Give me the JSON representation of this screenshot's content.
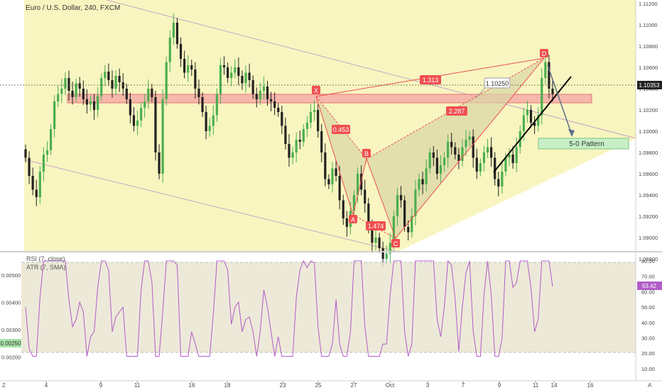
{
  "header": {
    "title": "Euro / U.S. Dollar, 240, FXCM"
  },
  "price_axis": {
    "ticks": [
      "1.11200",
      "1.11000",
      "1.10800",
      "1.10600",
      "1.10400",
      "1.10200",
      "1.10000",
      "1.09800",
      "1.09600",
      "1.09400",
      "1.09200",
      "1.09000",
      "1.08800"
    ],
    "last_price": "1.10353"
  },
  "rsi_axis": {
    "ticks": [
      "80.00",
      "70.00",
      "60.00",
      "50.00",
      "40.00",
      "30.00",
      "20.00",
      "10.00"
    ],
    "last_value": "63.42"
  },
  "atr_axis": {
    "ticks": [
      "0.00500",
      "0.00400",
      "0.00300",
      "0.00200"
    ],
    "highlight": "0.00250"
  },
  "time_axis": {
    "ticks": [
      "4",
      "9",
      "11",
      "16",
      "18",
      "23",
      "25",
      "27",
      "Oct",
      "3",
      "7",
      "9",
      "11",
      "14",
      "16"
    ]
  },
  "indicators": {
    "rsi_label": "RSI (7, close)",
    "atr_label": "ATR (7, SMA)"
  },
  "pattern": {
    "points": [
      "X",
      "A",
      "B",
      "C",
      "D"
    ],
    "ratios": [
      "0.453",
      "1.474",
      "2.287",
      "1.313"
    ],
    "price_callout": "1.10250",
    "target_label": "5-0 Pattern"
  },
  "corner_labels": {
    "left": "Z",
    "right": "A"
  },
  "colors": {
    "up": "#4caf50",
    "down": "#222222",
    "channel_fill": "#f8f5c0",
    "zone_fill": "#f5a3a3",
    "pattern_line": "#ef4f4f",
    "rsi_line": "#b25cc7",
    "target_fill": "#c6efc6",
    "last_price_bg": "#222222"
  },
  "chart_data": {
    "type": "candlestick",
    "title": "Euro / U.S. Dollar, 240, FXCM",
    "price_range": [
      1.0874,
      1.1126
    ],
    "harmonic_pattern": {
      "X": 1.102,
      "A": 1.091,
      "B": 1.096,
      "C": 1.088,
      "D": 1.1065,
      "ratios": {
        "AB": 0.453,
        "BC": 1.474,
        "CD": 2.287,
        "XD": 1.313
      }
    },
    "resistance_zone": [
      1.1016,
      1.1024
    ],
    "rsi": {
      "period": 7,
      "last": 63.42,
      "levels": [
        20,
        80
      ]
    },
    "atr": {
      "period": 7,
      "highlight": 0.0025
    },
    "closes": [
      1.0975,
      1.0958,
      1.0945,
      1.0938,
      1.0962,
      1.0978,
      1.0982,
      1.1002,
      1.1028,
      1.1035,
      1.104,
      1.105,
      1.1038,
      1.1032,
      1.1045,
      1.104,
      1.103,
      1.1025,
      1.1028,
      1.102,
      1.1033,
      1.105,
      1.1056,
      1.1048,
      1.104,
      1.1052,
      1.1046,
      1.104,
      1.103,
      1.1015,
      1.1005,
      1.101,
      1.1022,
      1.1028,
      1.104,
      1.1032,
      1.098,
      1.096,
      1.103,
      1.1065,
      1.1088,
      1.1102,
      1.1082,
      1.1068,
      1.1055,
      1.1062,
      1.1058,
      1.104,
      1.1032,
      1.1018,
      1.1,
      1.1005,
      1.1015,
      1.1035,
      1.1062,
      1.106,
      1.105,
      1.1055,
      1.106,
      1.1052,
      1.1045,
      1.1055,
      1.1048,
      1.1035,
      1.103,
      1.1038,
      1.1042,
      1.103,
      1.1028,
      1.1022,
      1.1018,
      1.1005,
      1.0988,
      1.0975,
      1.098,
      1.0992,
      1.099,
      1.1002,
      1.1008,
      1.1018,
      1.102,
      1.1,
      1.098,
      1.0955,
      1.095,
      1.0965,
      1.0958,
      1.0935,
      1.0918,
      1.091,
      1.0925,
      1.094,
      1.096,
      1.0945,
      1.0932,
      1.091,
      1.0895,
      1.09,
      1.089,
      1.088,
      1.0885,
      1.0895,
      1.092,
      1.094,
      1.0935,
      1.091,
      1.0905,
      1.092,
      1.0945,
      1.0955,
      1.095,
      1.0965,
      1.098,
      1.0975,
      1.096,
      1.0968,
      1.0975,
      1.099,
      1.0985,
      1.0978,
      1.0972,
      1.0985,
      1.0992,
      1.0995,
      1.0975,
      1.0962,
      1.097,
      1.098,
      1.0985,
      1.0975,
      1.0955,
      1.0948,
      1.0962,
      1.0975,
      1.0978,
      1.097,
      1.0985,
      1.1,
      1.1015,
      1.102,
      1.1008,
      1.1005,
      1.1015,
      1.105,
      1.1065,
      1.104,
      1.1035
    ]
  }
}
